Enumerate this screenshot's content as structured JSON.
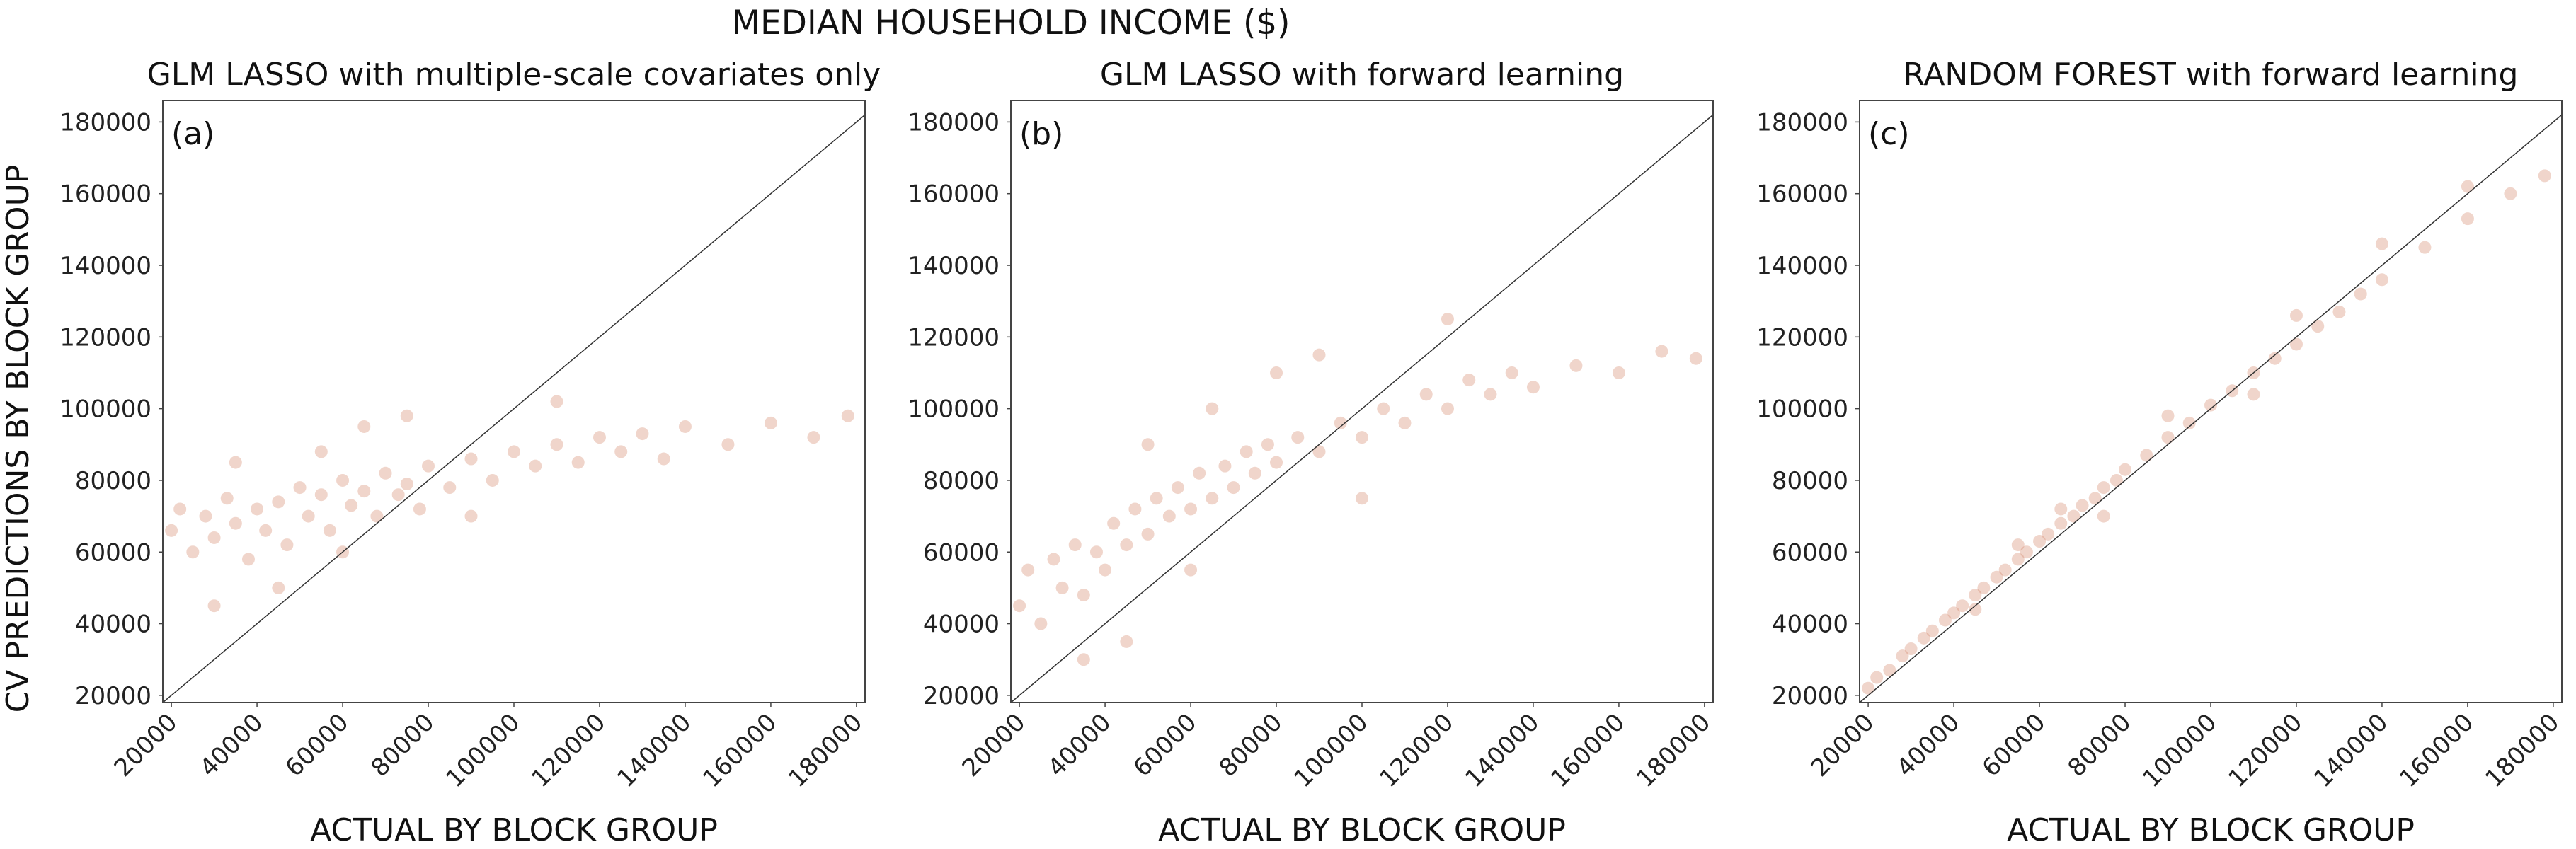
{
  "figure": {
    "suptitle": "MEDIAN HOUSEHOLD INCOME ($)",
    "ylabel": "CV PREDICTIONS BY BLOCK GROUP",
    "xlabel": "ACTUAL BY BLOCK GROUP",
    "point_color": "#d4876a",
    "line_color": "#333333"
  },
  "chart_data": [
    {
      "type": "scatter",
      "panel_label": "(a)",
      "title": "GLM LASSO with multiple-scale covariates only",
      "xlabel": "ACTUAL BY BLOCK GROUP",
      "ylabel": "CV PREDICTIONS BY BLOCK GROUP",
      "xlim": [
        18000,
        182000
      ],
      "ylim": [
        18000,
        186000
      ],
      "xticks": [
        20000,
        40000,
        60000,
        80000,
        100000,
        120000,
        140000,
        160000,
        180000
      ],
      "yticks": [
        20000,
        40000,
        60000,
        80000,
        100000,
        120000,
        140000,
        160000,
        180000
      ],
      "reference_line": "y = x",
      "grid": false,
      "points": [
        [
          20000,
          66000
        ],
        [
          22000,
          72000
        ],
        [
          25000,
          60000
        ],
        [
          28000,
          70000
        ],
        [
          30000,
          64000
        ],
        [
          33000,
          75000
        ],
        [
          35000,
          68000
        ],
        [
          38000,
          58000
        ],
        [
          40000,
          72000
        ],
        [
          42000,
          66000
        ],
        [
          45000,
          74000
        ],
        [
          47000,
          62000
        ],
        [
          50000,
          78000
        ],
        [
          52000,
          70000
        ],
        [
          55000,
          76000
        ],
        [
          57000,
          66000
        ],
        [
          60000,
          80000
        ],
        [
          62000,
          73000
        ],
        [
          65000,
          77000
        ],
        [
          68000,
          70000
        ],
        [
          70000,
          82000
        ],
        [
          73000,
          76000
        ],
        [
          75000,
          79000
        ],
        [
          78000,
          72000
        ],
        [
          80000,
          84000
        ],
        [
          85000,
          78000
        ],
        [
          90000,
          86000
        ],
        [
          95000,
          80000
        ],
        [
          100000,
          88000
        ],
        [
          105000,
          84000
        ],
        [
          110000,
          90000
        ],
        [
          115000,
          85000
        ],
        [
          120000,
          92000
        ],
        [
          125000,
          88000
        ],
        [
          130000,
          93000
        ],
        [
          135000,
          86000
        ],
        [
          140000,
          95000
        ],
        [
          150000,
          90000
        ],
        [
          160000,
          96000
        ],
        [
          170000,
          92000
        ],
        [
          178000,
          98000
        ],
        [
          45000,
          50000
        ],
        [
          55000,
          88000
        ],
        [
          65000,
          95000
        ],
        [
          35000,
          85000
        ],
        [
          90000,
          70000
        ],
        [
          110000,
          102000
        ],
        [
          60000,
          60000
        ],
        [
          30000,
          45000
        ],
        [
          75000,
          98000
        ]
      ]
    },
    {
      "type": "scatter",
      "panel_label": "(b)",
      "title": "GLM LASSO with forward learning",
      "xlabel": "ACTUAL BY BLOCK GROUP",
      "ylabel": "CV PREDICTIONS BY BLOCK GROUP",
      "xlim": [
        18000,
        182000
      ],
      "ylim": [
        18000,
        186000
      ],
      "xticks": [
        20000,
        40000,
        60000,
        80000,
        100000,
        120000,
        140000,
        160000,
        180000
      ],
      "yticks": [
        20000,
        40000,
        60000,
        80000,
        100000,
        120000,
        140000,
        160000,
        180000
      ],
      "reference_line": "y = x",
      "grid": false,
      "points": [
        [
          20000,
          45000
        ],
        [
          22000,
          55000
        ],
        [
          25000,
          40000
        ],
        [
          28000,
          58000
        ],
        [
          30000,
          50000
        ],
        [
          33000,
          62000
        ],
        [
          35000,
          48000
        ],
        [
          38000,
          60000
        ],
        [
          40000,
          55000
        ],
        [
          42000,
          68000
        ],
        [
          45000,
          62000
        ],
        [
          47000,
          72000
        ],
        [
          50000,
          65000
        ],
        [
          52000,
          75000
        ],
        [
          55000,
          70000
        ],
        [
          57000,
          78000
        ],
        [
          60000,
          72000
        ],
        [
          62000,
          82000
        ],
        [
          65000,
          75000
        ],
        [
          68000,
          84000
        ],
        [
          70000,
          78000
        ],
        [
          73000,
          88000
        ],
        [
          75000,
          82000
        ],
        [
          78000,
          90000
        ],
        [
          80000,
          85000
        ],
        [
          85000,
          92000
        ],
        [
          90000,
          88000
        ],
        [
          95000,
          96000
        ],
        [
          100000,
          92000
        ],
        [
          105000,
          100000
        ],
        [
          110000,
          96000
        ],
        [
          115000,
          104000
        ],
        [
          120000,
          100000
        ],
        [
          125000,
          108000
        ],
        [
          130000,
          104000
        ],
        [
          135000,
          110000
        ],
        [
          140000,
          106000
        ],
        [
          150000,
          112000
        ],
        [
          160000,
          110000
        ],
        [
          170000,
          116000
        ],
        [
          178000,
          114000
        ],
        [
          60000,
          55000
        ],
        [
          50000,
          90000
        ],
        [
          80000,
          110000
        ],
        [
          100000,
          75000
        ],
        [
          35000,
          30000
        ],
        [
          120000,
          125000
        ],
        [
          65000,
          100000
        ],
        [
          45000,
          35000
        ],
        [
          90000,
          115000
        ]
      ]
    },
    {
      "type": "scatter",
      "panel_label": "(c)",
      "title": "RANDOM FOREST with forward learning",
      "xlabel": "ACTUAL BY BLOCK GROUP",
      "ylabel": "CV PREDICTIONS BY BLOCK GROUP",
      "xlim": [
        18000,
        182000
      ],
      "ylim": [
        18000,
        186000
      ],
      "xticks": [
        20000,
        40000,
        60000,
        80000,
        100000,
        120000,
        140000,
        160000,
        180000
      ],
      "yticks": [
        20000,
        40000,
        60000,
        80000,
        100000,
        120000,
        140000,
        160000,
        180000
      ],
      "reference_line": "y = x",
      "grid": false,
      "points": [
        [
          20000,
          22000
        ],
        [
          22000,
          25000
        ],
        [
          25000,
          27000
        ],
        [
          28000,
          31000
        ],
        [
          30000,
          33000
        ],
        [
          33000,
          36000
        ],
        [
          35000,
          38000
        ],
        [
          38000,
          41000
        ],
        [
          40000,
          43000
        ],
        [
          42000,
          45000
        ],
        [
          45000,
          48000
        ],
        [
          47000,
          50000
        ],
        [
          50000,
          53000
        ],
        [
          52000,
          55000
        ],
        [
          55000,
          58000
        ],
        [
          57000,
          60000
        ],
        [
          60000,
          63000
        ],
        [
          62000,
          65000
        ],
        [
          65000,
          68000
        ],
        [
          68000,
          70000
        ],
        [
          70000,
          73000
        ],
        [
          73000,
          75000
        ],
        [
          75000,
          78000
        ],
        [
          78000,
          80000
        ],
        [
          80000,
          83000
        ],
        [
          85000,
          87000
        ],
        [
          90000,
          92000
        ],
        [
          95000,
          96000
        ],
        [
          100000,
          101000
        ],
        [
          105000,
          105000
        ],
        [
          110000,
          110000
        ],
        [
          115000,
          114000
        ],
        [
          120000,
          118000
        ],
        [
          125000,
          123000
        ],
        [
          130000,
          127000
        ],
        [
          135000,
          132000
        ],
        [
          140000,
          136000
        ],
        [
          150000,
          145000
        ],
        [
          160000,
          153000
        ],
        [
          170000,
          160000
        ],
        [
          178000,
          165000
        ],
        [
          55000,
          62000
        ],
        [
          65000,
          72000
        ],
        [
          75000,
          70000
        ],
        [
          90000,
          98000
        ],
        [
          110000,
          104000
        ],
        [
          120000,
          126000
        ],
        [
          140000,
          146000
        ],
        [
          160000,
          162000
        ],
        [
          45000,
          44000
        ]
      ]
    }
  ]
}
